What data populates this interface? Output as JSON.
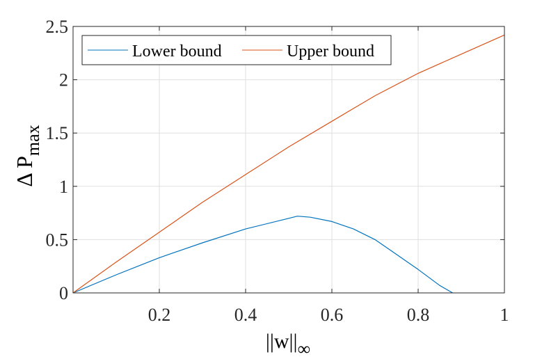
{
  "chart_data": {
    "type": "line",
    "title": "",
    "xlabel": {
      "text": "||w||",
      "sub": "∞"
    },
    "ylabel": {
      "text": "Δ P",
      "sub": "max"
    },
    "xlim": [
      0,
      1
    ],
    "ylim": [
      0,
      2.5
    ],
    "xticks": [
      0.2,
      0.4,
      0.6,
      0.8,
      1
    ],
    "xtick_labels": [
      "0.2",
      "0.4",
      "0.6",
      "0.8",
      "1"
    ],
    "yticks": [
      0,
      0.5,
      1,
      1.5,
      2,
      2.5
    ],
    "ytick_labels": [
      "0",
      "0.5",
      "1",
      "1.5",
      "2",
      "2.5"
    ],
    "grid": true,
    "legend": {
      "placement": "top-left",
      "orientation": "horizontal"
    },
    "series": [
      {
        "name": "Lower bound",
        "color": "#0072BD",
        "x": [
          0,
          0.1,
          0.2,
          0.3,
          0.4,
          0.5,
          0.52,
          0.55,
          0.6,
          0.65,
          0.7,
          0.75,
          0.8,
          0.85,
          0.88
        ],
        "y": [
          0,
          0.17,
          0.33,
          0.47,
          0.6,
          0.7,
          0.72,
          0.71,
          0.67,
          0.6,
          0.5,
          0.36,
          0.22,
          0.07,
          0
        ]
      },
      {
        "name": "Upper bound",
        "color": "#D95319",
        "x": [
          0,
          0.1,
          0.2,
          0.3,
          0.4,
          0.5,
          0.6,
          0.7,
          0.8,
          0.9,
          1.0
        ],
        "y": [
          0,
          0.29,
          0.57,
          0.85,
          1.11,
          1.37,
          1.61,
          1.85,
          2.06,
          2.24,
          2.42
        ]
      }
    ]
  }
}
